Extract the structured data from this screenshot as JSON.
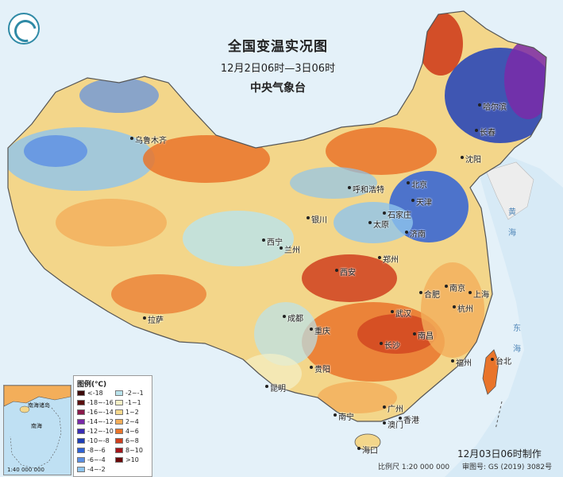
{
  "header": {
    "title": "全国变温实况图",
    "date_range": "12月2日06时—3日06时",
    "org": "中央气象台"
  },
  "legend": {
    "title": "图例(℃)",
    "items": [
      {
        "label": "<-18",
        "color": "#3d0a0a"
      },
      {
        "label": "-18~-16",
        "color": "#5a0f0f"
      },
      {
        "label": "-16~-14",
        "color": "#8a1a4a"
      },
      {
        "label": "-14~-12",
        "color": "#7a2aa8"
      },
      {
        "label": "-12~-10",
        "color": "#3b2db5"
      },
      {
        "label": "-10~-8",
        "color": "#1f3fb8"
      },
      {
        "label": "-8~-6",
        "color": "#2f62d6"
      },
      {
        "label": "-6~-4",
        "color": "#5b8fe4"
      },
      {
        "label": "-4~-2",
        "color": "#8ec4ec"
      },
      {
        "label": "-2~-1",
        "color": "#b9e3ec"
      },
      {
        "label": "-1~1",
        "color": "#f3f0c6"
      },
      {
        "label": "1~2",
        "color": "#f6d98e"
      },
      {
        "label": "2~4",
        "color": "#f3ae5a"
      },
      {
        "label": "4~6",
        "color": "#e9742a"
      },
      {
        "label": "6~8",
        "color": "#cf3f1d"
      },
      {
        "label": "8~10",
        "color": "#a4161a"
      },
      {
        "label": ">10",
        "color": "#6b0a0a"
      }
    ]
  },
  "cities": [
    {
      "name": "乌鲁木齐"
    },
    {
      "name": "哈尔滨"
    },
    {
      "name": "长春"
    },
    {
      "name": "沈阳"
    },
    {
      "name": "呼和浩特"
    },
    {
      "name": "北京"
    },
    {
      "name": "天津"
    },
    {
      "name": "石家庄"
    },
    {
      "name": "太原"
    },
    {
      "name": "银川"
    },
    {
      "name": "西宁"
    },
    {
      "name": "兰州"
    },
    {
      "name": "济南"
    },
    {
      "name": "郑州"
    },
    {
      "name": "西安"
    },
    {
      "name": "合肥"
    },
    {
      "name": "南京"
    },
    {
      "name": "上海"
    },
    {
      "name": "杭州"
    },
    {
      "name": "武汉"
    },
    {
      "name": "成都"
    },
    {
      "name": "拉萨"
    },
    {
      "name": "重庆"
    },
    {
      "name": "长沙"
    },
    {
      "name": "南昌"
    },
    {
      "name": "福州"
    },
    {
      "name": "贵阳"
    },
    {
      "name": "台北"
    },
    {
      "name": "昆明"
    },
    {
      "name": "南宁"
    },
    {
      "name": "广州"
    },
    {
      "name": "香港"
    },
    {
      "name": "澳门"
    },
    {
      "name": "海口"
    }
  ],
  "seas": [
    {
      "name": "黄"
    },
    {
      "name": "海"
    },
    {
      "name": "东"
    },
    {
      "name": "海"
    }
  ],
  "inset": {
    "labels": [
      "南海",
      "南海诸岛",
      "1:40 000 000"
    ]
  },
  "footer": {
    "stamp": "12月03日06时制作",
    "scale": "比例尺 1:20 000 000",
    "code": "审图号: GS (2019) 3082号"
  }
}
